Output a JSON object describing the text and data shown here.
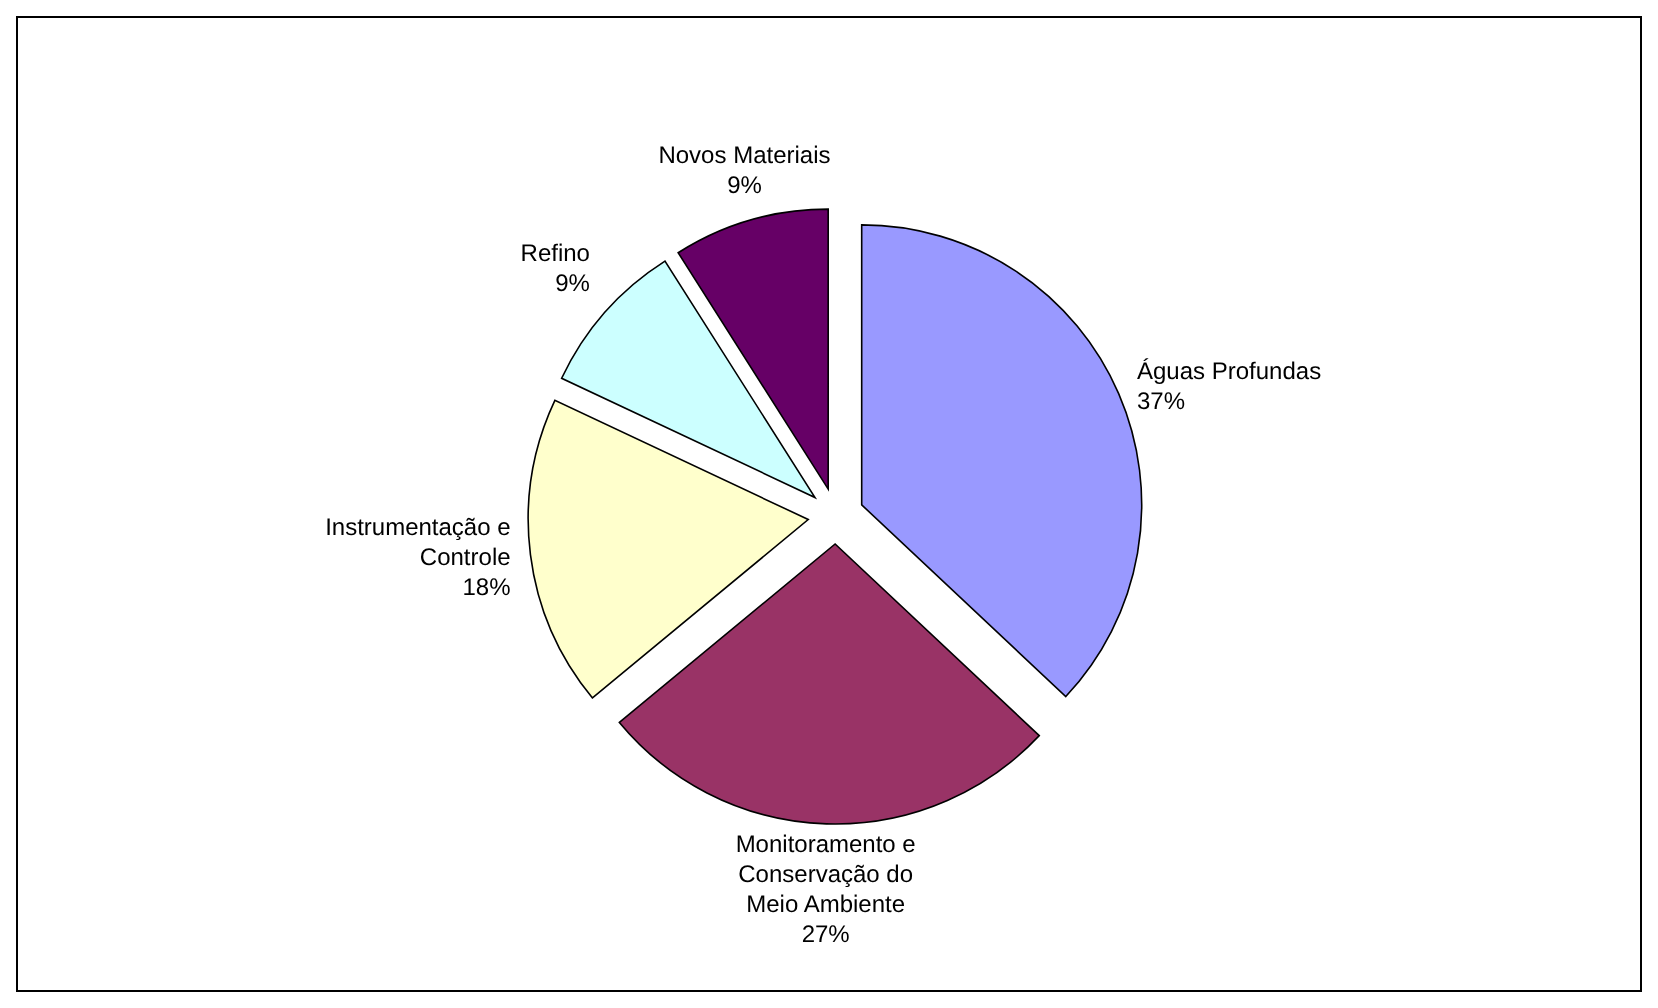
{
  "chart_data": {
    "type": "pie",
    "categories": [
      "Águas Profundas",
      "Monitoramento e Conservação do Meio Ambiente",
      "Instrumentação e Controle",
      "Refino",
      "Novos Materiais"
    ],
    "values": [
      37,
      27,
      18,
      9,
      9
    ],
    "value_labels": [
      "37%",
      "27%",
      "18%",
      "9%",
      "9%"
    ],
    "colors": [
      "#9999ff",
      "#993366",
      "#ffffcc",
      "#ccffff",
      "#660066"
    ]
  }
}
